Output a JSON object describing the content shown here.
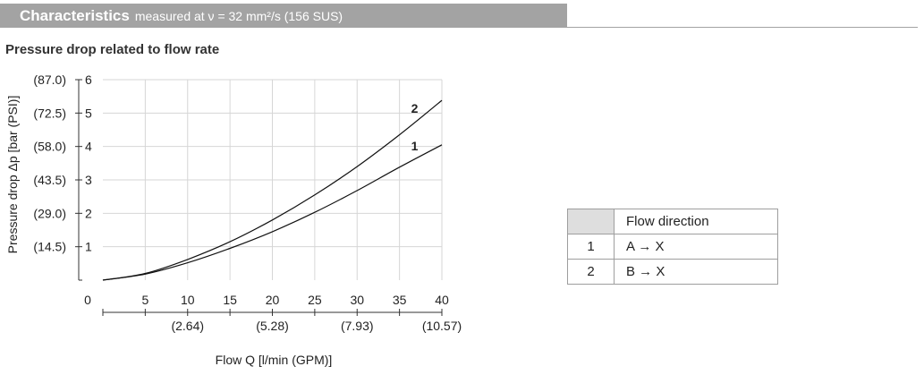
{
  "header": {
    "title": "Characteristics",
    "subtitle": "measured at ν = 32 mm²/s (156 SUS)"
  },
  "section_title": "Pressure drop related to flow rate",
  "legend_table": {
    "header": "Flow direction",
    "rows": [
      {
        "id": "1",
        "direction": "A → X"
      },
      {
        "id": "2",
        "direction": "B → X"
      }
    ]
  },
  "chart_data": {
    "type": "line",
    "title": "Pressure drop related to flow rate",
    "xlabel": "Flow Q [l/min (GPM)]",
    "ylabel": "Pressure drop Δp [bar (PSI)]",
    "xlim": [
      0,
      40
    ],
    "ylim": [
      0,
      6
    ],
    "x_ticks": [
      "0",
      "5",
      "10",
      "15",
      "20",
      "25",
      "30",
      "35",
      "40"
    ],
    "x_secondary_ticks": [
      {
        "x": 10,
        "label": "(2.64)"
      },
      {
        "x": 20,
        "label": "(5.28)"
      },
      {
        "x": 30,
        "label": "(7.93)"
      },
      {
        "x": 40,
        "label": "(10.57)"
      }
    ],
    "y_ticks": [
      "1",
      "2",
      "3",
      "4",
      "5",
      "6"
    ],
    "y_secondary_ticks": [
      {
        "y": 1,
        "label": "(14.5)"
      },
      {
        "y": 2,
        "label": "(29.0)"
      },
      {
        "y": 3,
        "label": "(43.5)"
      },
      {
        "y": 4,
        "label": "(58.0)"
      },
      {
        "y": 5,
        "label": "(72.5)"
      },
      {
        "y": 6,
        "label": "(87.0)"
      }
    ],
    "grid": true,
    "series": [
      {
        "name": "1",
        "x": [
          0,
          5,
          10,
          15,
          20,
          25,
          30,
          35,
          40
        ],
        "values": [
          0,
          0.18,
          0.52,
          0.95,
          1.45,
          2.03,
          2.68,
          3.38,
          4.05
        ]
      },
      {
        "name": "2",
        "x": [
          0,
          5,
          10,
          15,
          20,
          25,
          30,
          35,
          40
        ],
        "values": [
          0,
          0.2,
          0.62,
          1.15,
          1.8,
          2.55,
          3.4,
          4.35,
          5.38
        ]
      }
    ]
  }
}
